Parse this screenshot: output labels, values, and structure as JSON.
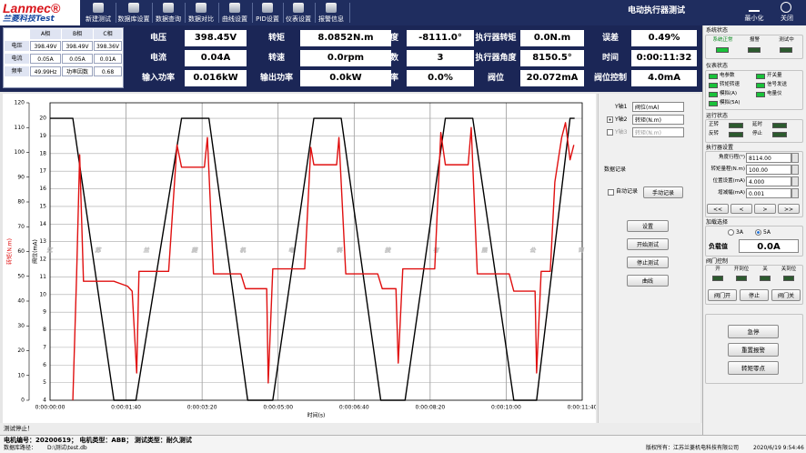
{
  "header": {
    "logo": "Lanmec®",
    "logo_sub": "兰菱科技Test",
    "title": "电动执行器测试",
    "minimize": "最小化",
    "close": "关闭"
  },
  "toolbar": [
    "新建测试",
    "数据库设置",
    "数据查询",
    "数据对比",
    "曲线设置",
    "PID设置",
    "仪表设置",
    "报警信息"
  ],
  "phase_table": {
    "columns": [
      "A相",
      "B相",
      "C相"
    ],
    "rows": [
      [
        "电压",
        "398.49V",
        "398.49V",
        "398.36V"
      ],
      [
        "电流",
        "0.05A",
        "0.05A",
        "0.01A"
      ],
      [
        "频率",
        "49.99Hz",
        "功率因数",
        "0.68"
      ]
    ]
  },
  "readings": [
    [
      {
        "label": "电压",
        "value": "398.45V"
      },
      {
        "label": "转矩",
        "value": "8.0852N.m"
      },
      {
        "label": "角度",
        "value": "-8111.0°"
      },
      {
        "label": "执行器转矩",
        "value": "0.0N.m"
      },
      {
        "label": "误差",
        "value": "0.49%"
      }
    ],
    [
      {
        "label": "电流",
        "value": "0.04A"
      },
      {
        "label": "转速",
        "value": "0.0rpm"
      },
      {
        "label": "次数",
        "value": "3"
      },
      {
        "label": "执行器角度",
        "value": "8150.5°"
      },
      {
        "label": "时间",
        "value": "0:00:11:32"
      }
    ],
    [
      {
        "label": "输入功率",
        "value": "0.016kW"
      },
      {
        "label": "输出功率",
        "value": "0.0kW"
      },
      {
        "label": "效率",
        "value": "0.0%"
      },
      {
        "label": "阀位",
        "value": "20.072mA"
      },
      {
        "label": "阀位控制",
        "value": "4.0mA"
      }
    ]
  ],
  "chart_data": {
    "type": "line",
    "x_label": "时间(s)",
    "y_label": "转矩(N.m)",
    "y2_label": "阀位(mA)",
    "grid": true,
    "xlim": [
      0,
      700
    ],
    "xticks": [
      {
        "value": 0,
        "label": "0:00:00:00"
      },
      {
        "value": 100,
        "label": "0:00:01:40"
      },
      {
        "value": 200,
        "label": "0:00:03:20"
      },
      {
        "value": 300,
        "label": "0:00:05:00"
      },
      {
        "value": 400,
        "label": "0:00:06:40"
      },
      {
        "value": 500,
        "label": "0:00:08:20"
      },
      {
        "value": 600,
        "label": "0:00:10:00"
      },
      {
        "value": 700,
        "label": "0:00:11:40"
      }
    ],
    "ylim": [
      0,
      120
    ],
    "yticks": [
      0,
      10,
      20,
      30,
      40,
      50,
      60,
      70,
      80,
      90,
      100,
      110,
      120
    ],
    "y2lim": [
      4,
      20.88
    ],
    "y2ticks": [
      4,
      5,
      6,
      7,
      8,
      9,
      10,
      11,
      12,
      13,
      14,
      15,
      16,
      17,
      18,
      19,
      20
    ],
    "series": [
      {
        "name": "阀位(mA)",
        "color": "#000000",
        "axis": "y2",
        "x": [
          0,
          30,
          84,
          113,
          173,
          209,
          260,
          293,
          347,
          383,
          435,
          467,
          520,
          556,
          610,
          640,
          684,
          690
        ],
        "values": [
          20,
          20,
          4,
          4,
          20,
          20,
          4,
          4,
          20,
          20,
          4,
          4,
          20,
          20,
          4,
          4,
          20,
          20
        ]
      },
      {
        "name": "转矩(N.m)",
        "color": "#e01010",
        "x": [
          30,
          35,
          39,
          44,
          84,
          102,
          108,
          114,
          117,
          156,
          167,
          173,
          203,
          207,
          215,
          251,
          257,
          285,
          287,
          293,
          335,
          343,
          347,
          377,
          380,
          389,
          431,
          437,
          455,
          458,
          464,
          506,
          514,
          520,
          550,
          554,
          562,
          604,
          610,
          638,
          640,
          646,
          658,
          664,
          673,
          678,
          684,
          689
        ],
        "values": [
          0,
          51,
          99,
          48,
          48,
          46,
          44,
          11,
          52,
          52,
          103,
          94,
          94,
          106,
          51,
          51,
          45,
          45,
          7,
          53,
          53,
          102,
          95,
          95,
          106,
          51,
          51,
          45,
          45,
          15,
          53,
          53,
          108,
          95,
          95,
          110,
          51,
          51,
          44,
          44,
          11,
          52,
          52,
          88,
          106,
          112,
          97,
          103
        ]
      }
    ]
  },
  "chart_panel": {
    "axis_labels": [
      "Y轴1",
      "Y轴2",
      "Y轴3"
    ],
    "axis_choices": [
      "阀位(mA)",
      "转矩(N.m)",
      "转矩(N.m)"
    ],
    "record_title": "数据记录",
    "auto_record": "自动记录",
    "manual_record": "手动记录",
    "buttons": [
      "设置",
      "开始测试",
      "停止测试",
      "曲线"
    ]
  },
  "watermark": "江苏兰菱机电科技有限公司",
  "test_status": "测试停止！",
  "right_panel": {
    "system_title": "系统状态",
    "system_items": [
      "系统正常",
      "报警",
      "测试中"
    ],
    "meter_title": "仪表状态",
    "meter_items": [
      "电参数",
      "开关量",
      "转矩转速",
      "信号发送",
      "模拟(A)",
      "电量仪",
      "模拟(5A)"
    ],
    "run_title": "运行状态",
    "run_items": [
      "正转",
      "延时",
      "反转",
      "停止"
    ],
    "actuator_title": "执行器设置",
    "actuator_fields": [
      {
        "label": "角度行程(°)",
        "value": "8114.00"
      },
      {
        "label": "转矩量程(N.m)",
        "value": "100.00"
      },
      {
        "label": "位置设置(mA)",
        "value": "4.000"
      },
      {
        "label": "增减幅(mA)",
        "value": "0.001"
      }
    ],
    "step_buttons": [
      "<<",
      "<",
      ">",
      ">>"
    ],
    "load_title": "加载选择",
    "load_options": [
      "3A",
      "5A"
    ],
    "load_label": "负载值",
    "load_value": "0.0A",
    "valve_title": "阀门控制",
    "valve_items": [
      "开",
      "开到位",
      "关",
      "关到位"
    ],
    "valve_buttons": [
      "阀门开",
      "停止",
      "阀门关"
    ],
    "action_buttons": [
      "急停",
      "重置报警",
      "转矩零点"
    ]
  },
  "status_bar": {
    "test_info": "电机编号：20200619；  电机类型：ABB；  测试类型：耐久测试",
    "db_label": "数据库路径：",
    "db_path": "D:\\测试\\test.db",
    "copyright": "版权所有：江苏兰菱机电科技有限公司",
    "datetime": "2020/6/19 9:54:46"
  }
}
